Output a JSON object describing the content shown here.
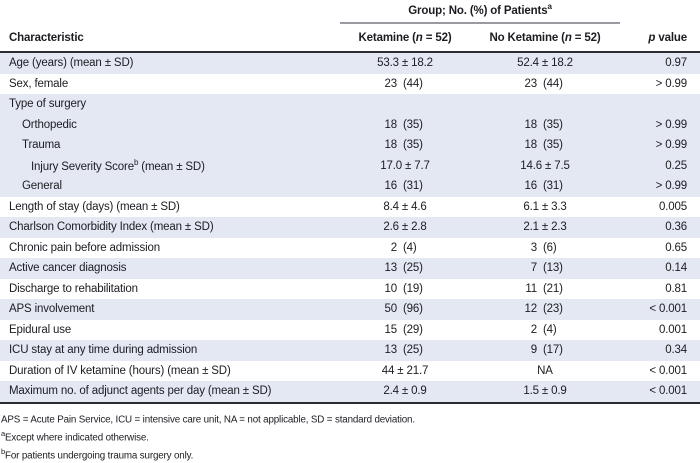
{
  "header": {
    "spanner": {
      "text": "Group; No. (%) of Patients",
      "sup": "a"
    },
    "characteristic": "Characteristic",
    "ketamine": {
      "prefix": "Ketamine (",
      "italic": "n",
      "suffix": " = 52)"
    },
    "no_ketamine": {
      "prefix": "No Ketamine (",
      "italic": "n",
      "suffix": " = 52)"
    },
    "p_value": {
      "italic": "p",
      "suffix": " value"
    }
  },
  "rows": [
    {
      "label": "Age (years) (mean ± SD)",
      "indent": 0,
      "shade": true,
      "ketamine": {
        "type": "pm",
        "value": "53.3 ± 18.2"
      },
      "no_ketamine": {
        "type": "pm",
        "value": "52.4 ± 18.2"
      },
      "p": "0.97"
    },
    {
      "label": "Sex, female",
      "indent": 0,
      "shade": false,
      "ketamine": {
        "type": "npct",
        "n": "23",
        "pct": "(44)"
      },
      "no_ketamine": {
        "type": "npct",
        "n": "23",
        "pct": "(44)"
      },
      "p": "> 0.99"
    },
    {
      "label": "Type of surgery",
      "indent": 0,
      "shade": true,
      "p": ""
    },
    {
      "label": "Orthopedic",
      "indent": 1,
      "shade": true,
      "ketamine": {
        "type": "npct",
        "n": "18",
        "pct": "(35)"
      },
      "no_ketamine": {
        "type": "npct",
        "n": "18",
        "pct": "(35)"
      },
      "p": "> 0.99"
    },
    {
      "label": "Trauma",
      "indent": 1,
      "shade": true,
      "ketamine": {
        "type": "npct",
        "n": "18",
        "pct": "(35)"
      },
      "no_ketamine": {
        "type": "npct",
        "n": "18",
        "pct": "(35)"
      },
      "p": "> 0.99"
    },
    {
      "label": "Injury Severity Score",
      "sup": "b",
      "after": " (mean ± SD)",
      "indent": 2,
      "shade": true,
      "ketamine": {
        "type": "pm",
        "value": "17.0 ± 7.7"
      },
      "no_ketamine": {
        "type": "pm",
        "value": "14.6 ± 7.5"
      },
      "p": "0.25"
    },
    {
      "label": "General",
      "indent": 1,
      "shade": true,
      "ketamine": {
        "type": "npct",
        "n": "16",
        "pct": "(31)"
      },
      "no_ketamine": {
        "type": "npct",
        "n": "16",
        "pct": "(31)"
      },
      "p": "> 0.99"
    },
    {
      "label": "Length of stay (days) (mean ± SD)",
      "indent": 0,
      "shade": false,
      "ketamine": {
        "type": "pm",
        "value": "8.4 ± 4.6"
      },
      "no_ketamine": {
        "type": "pm",
        "value": "6.1 ± 3.3"
      },
      "p": "0.005"
    },
    {
      "label": "Charlson Comorbidity Index (mean ± SD)",
      "indent": 0,
      "shade": true,
      "ketamine": {
        "type": "pm",
        "value": "2.6 ± 2.8"
      },
      "no_ketamine": {
        "type": "pm",
        "value": "2.1 ± 2.3"
      },
      "p": "0.36"
    },
    {
      "label": "Chronic pain before admission",
      "indent": 0,
      "shade": false,
      "ketamine": {
        "type": "npct",
        "n": "2",
        "pct": "(4)"
      },
      "no_ketamine": {
        "type": "npct",
        "n": "3",
        "pct": "(6)"
      },
      "p": "0.65"
    },
    {
      "label": "Active cancer diagnosis",
      "indent": 0,
      "shade": true,
      "ketamine": {
        "type": "npct",
        "n": "13",
        "pct": "(25)"
      },
      "no_ketamine": {
        "type": "npct",
        "n": "7",
        "pct": "(13)"
      },
      "p": "0.14"
    },
    {
      "label": "Discharge to rehabilitation",
      "indent": 0,
      "shade": false,
      "ketamine": {
        "type": "npct",
        "n": "10",
        "pct": "(19)"
      },
      "no_ketamine": {
        "type": "npct",
        "n": "11",
        "pct": "(21)"
      },
      "p": "0.81"
    },
    {
      "label": "APS involvement",
      "indent": 0,
      "shade": true,
      "ketamine": {
        "type": "npct",
        "n": "50",
        "pct": "(96)"
      },
      "no_ketamine": {
        "type": "npct",
        "n": "12",
        "pct": "(23)"
      },
      "p": "< 0.001"
    },
    {
      "label": "Epidural use",
      "indent": 0,
      "shade": false,
      "ketamine": {
        "type": "npct",
        "n": "15",
        "pct": "(29)"
      },
      "no_ketamine": {
        "type": "npct",
        "n": "2",
        "pct": "(4)"
      },
      "p": "0.001"
    },
    {
      "label": "ICU stay at any time during admission",
      "indent": 0,
      "shade": true,
      "ketamine": {
        "type": "npct",
        "n": "13",
        "pct": "(25)"
      },
      "no_ketamine": {
        "type": "npct",
        "n": "9",
        "pct": "(17)"
      },
      "p": "0.34"
    },
    {
      "label": "Duration of IV ketamine (hours) (mean ± SD)",
      "indent": 0,
      "shade": false,
      "ketamine": {
        "type": "pm",
        "value": "44 ± 21.7"
      },
      "no_ketamine": {
        "type": "pm",
        "value": "NA"
      },
      "p": "< 0.001"
    },
    {
      "label": "Maximum no. of adjunct agents per day (mean ± SD)",
      "indent": 0,
      "shade": true,
      "ketamine": {
        "type": "pm",
        "value": "2.4 ± 0.9"
      },
      "no_ketamine": {
        "type": "pm",
        "value": "1.5 ± 0.9"
      },
      "p": "< 0.001"
    }
  ],
  "footnotes": [
    {
      "text": "APS = Acute Pain Service, ICU = intensive care unit, NA = not applicable, SD = standard deviation."
    },
    {
      "sup": "a",
      "text": "Except where indicated otherwise."
    },
    {
      "sup": "b",
      "text": "For patients undergoing trauma surgery only."
    }
  ],
  "colors": {
    "stripe": "#e4e8f2",
    "rule_dark": "#2b2b33",
    "rule_light": "#9a9aa0"
  }
}
